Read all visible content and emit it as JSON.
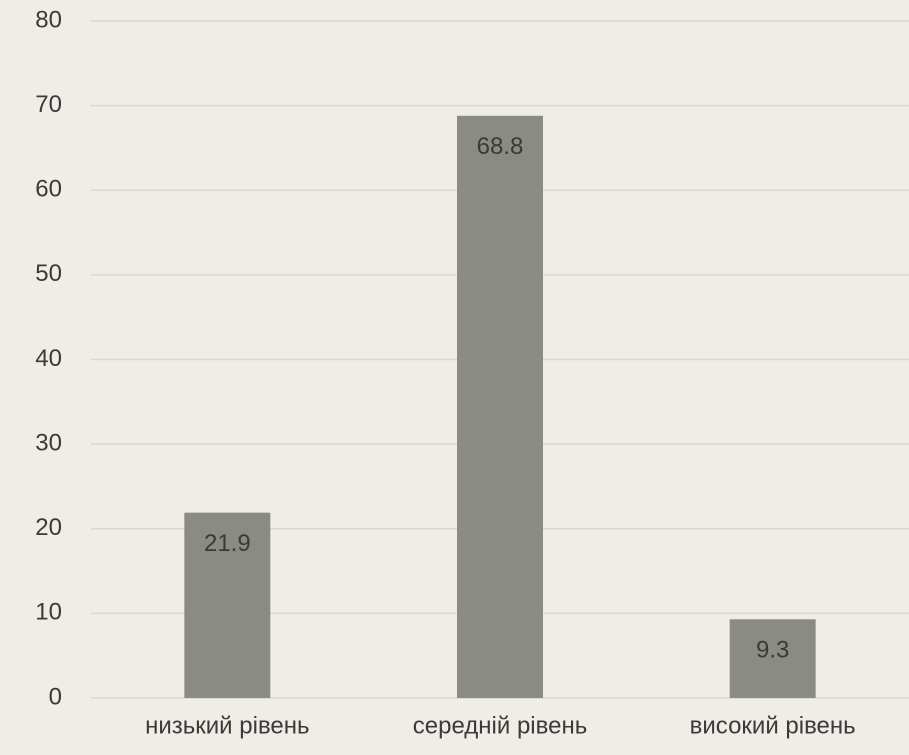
{
  "chart_data": {
    "type": "bar",
    "categories": [
      "низький рівень",
      "середній рівень",
      "високий рівень"
    ],
    "values": [
      21.9,
      68.8,
      9.3
    ],
    "color": "#8a8b83",
    "ylim": [
      0,
      80
    ],
    "yticks": [
      0,
      10,
      20,
      30,
      40,
      50,
      60,
      70,
      80
    ],
    "grid": true
  }
}
